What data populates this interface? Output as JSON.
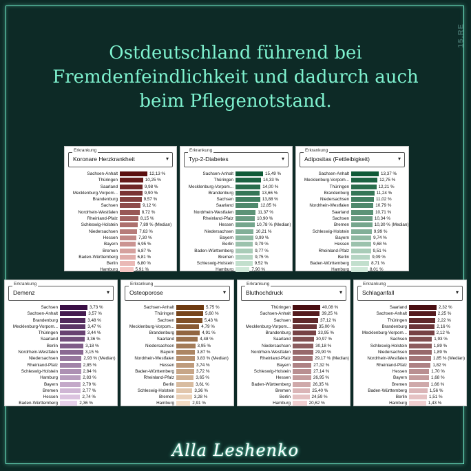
{
  "title": "Ostdeutschland führend bei Fremdenfeindlichkeit und dadurch auch beim Pflegenotstand.",
  "watermark": "15.RE",
  "brand": "Alla Leshenko",
  "panels": [
    {
      "label": "Erkrankung",
      "selected": "Koronare Herzkrankheit",
      "colors": [
        "#5b0f0f",
        "#f4c5c2"
      ],
      "rows": [
        [
          "Sachsen-Anhalt",
          12.13,
          "12,13 %"
        ],
        [
          "Thüringen",
          10.25,
          "10,25 %"
        ],
        [
          "Saarland",
          9.98,
          "9,98 %"
        ],
        [
          "Mecklenburg-Vorpom...",
          9.9,
          "9,90 %"
        ],
        [
          "Brandenburg",
          9.57,
          "9,57 %"
        ],
        [
          "Sachsen",
          9.12,
          "9,12 %"
        ],
        [
          "Nordrhein-Westfalen",
          8.72,
          "8,72 %"
        ],
        [
          "Rheinland-Pfalz",
          8.15,
          "8,15 %"
        ],
        [
          "Schleswig-Holstein",
          7.89,
          "7,89 % (Median)"
        ],
        [
          "Niedersachsen",
          7.63,
          "7,63 %"
        ],
        [
          "Hessen",
          7.3,
          "7,30 %"
        ],
        [
          "Bayern",
          6.95,
          "6,95 %"
        ],
        [
          "Bremen",
          6.87,
          "6,87 %"
        ],
        [
          "Baden-Württemberg",
          6.81,
          "6,81 %"
        ],
        [
          "Berlin",
          6.8,
          "6,80 %"
        ],
        [
          "Hamburg",
          5.91,
          "5,91 %"
        ]
      ]
    },
    {
      "label": "Erkrankung",
      "selected": "Typ-2-Diabetes",
      "colors": [
        "#0f5a37",
        "#cfe8d8"
      ],
      "rows": [
        [
          "Sachsen-Anhalt",
          15.49,
          "15,49 %"
        ],
        [
          "Thüringen",
          14.33,
          "14,33 %"
        ],
        [
          "Mecklenburg-Vorpom...",
          14.0,
          "14,00 %"
        ],
        [
          "Brandenburg",
          13.66,
          "13,66 %"
        ],
        [
          "Sachsen",
          13.88,
          "13,88 %"
        ],
        [
          "Saarland",
          12.85,
          "12,85 %"
        ],
        [
          "Nordrhein-Westfalen",
          11.37,
          "11,37 %"
        ],
        [
          "Rheinland-Pfalz",
          10.9,
          "10,90 %"
        ],
        [
          "Hessen",
          10.78,
          "10,78 % (Median)"
        ],
        [
          "Niedersachsen",
          10.21,
          "10,21 %"
        ],
        [
          "Bayern",
          9.99,
          "9,99 %"
        ],
        [
          "Berlin",
          9.79,
          "9,79 %"
        ],
        [
          "Baden-Württemberg",
          9.77,
          "9,77 %"
        ],
        [
          "Bremen",
          9.75,
          "9,75 %"
        ],
        [
          "Schleswig-Holstein",
          9.52,
          "9,52 %"
        ],
        [
          "Hamburg",
          7.9,
          "7,90 %"
        ]
      ]
    },
    {
      "label": "Erkrankung",
      "selected": "Adipositas (Fettleibigkeit)",
      "colors": [
        "#0f5a37",
        "#cfe8d8"
      ],
      "rows": [
        [
          "Sachsen-Anhalt",
          13.37,
          "13,37 %"
        ],
        [
          "Mecklenburg-Vorpom...",
          12.75,
          "12,75 %"
        ],
        [
          "Thüringen",
          12.21,
          "12,21 %"
        ],
        [
          "Brandenburg",
          11.24,
          "11,24 %"
        ],
        [
          "Niedersachsen",
          11.02,
          "11,02 %"
        ],
        [
          "Nordrhein-Westfalen",
          10.79,
          "10,79 %"
        ],
        [
          "Saarland",
          10.71,
          "10,71 %"
        ],
        [
          "Sachsen",
          10.34,
          "10,34 %"
        ],
        [
          "Bremen",
          10.3,
          "10,30 % (Median)"
        ],
        [
          "Schleswig-Holstein",
          9.99,
          "9,99 %"
        ],
        [
          "Bayern",
          9.74,
          "9,74 %"
        ],
        [
          "Hessen",
          9.68,
          "9,68 %"
        ],
        [
          "Rheinland-Pfalz",
          9.51,
          "9,51 %"
        ],
        [
          "Berlin",
          9.09,
          "9,09 %"
        ],
        [
          "Baden-Württemberg",
          8.71,
          "8,71 %"
        ],
        [
          "Hamburg",
          8.01,
          "8,01 %"
        ]
      ]
    },
    {
      "label": "Erkrankung",
      "selected": "Demenz",
      "colors": [
        "#3a0f45",
        "#e6d0ea"
      ],
      "rows": [
        [
          "Sachsen",
          3.73,
          "3,73 %"
        ],
        [
          "Sachsen-Anhalt",
          3.57,
          "3,57 %"
        ],
        [
          "Brandenburg",
          3.48,
          "3,48 %"
        ],
        [
          "Mecklenburg-Vorpom...",
          3.47,
          "3,47 %"
        ],
        [
          "Thüringen",
          3.44,
          "3,44 %"
        ],
        [
          "Saarland",
          3.36,
          "3,36 %"
        ],
        [
          "Berlin",
          3.18,
          "3,18 %"
        ],
        [
          "Nordrhein-Westfalen",
          3.15,
          "3,15 %"
        ],
        [
          "Niedersachsen",
          2.93,
          "2,93 % (Median)"
        ],
        [
          "Rheinland-Pfalz",
          2.85,
          "2,85 %"
        ],
        [
          "Schleswig-Holstein",
          2.84,
          "2,84 %"
        ],
        [
          "Hamburg",
          2.83,
          "2,83 %"
        ],
        [
          "Bayern",
          2.79,
          "2,79 %"
        ],
        [
          "Bremen",
          2.77,
          "2,77 %"
        ],
        [
          "Hessen",
          2.74,
          "2,74 %"
        ],
        [
          "Baden-Württemberg",
          2.36,
          "2,36 %"
        ]
      ]
    },
    {
      "label": "Erkrankung",
      "selected": "Osteoporose",
      "colors": [
        "#6e3a10",
        "#f3dcc4"
      ],
      "rows": [
        [
          "Sachsen-Anhalt",
          5.75,
          "5,75 %"
        ],
        [
          "Thüringen",
          5.6,
          "5,60 %"
        ],
        [
          "Sachsen",
          5.43,
          "5,43 %"
        ],
        [
          "Mecklenburg-Vorpom...",
          4.79,
          "4,79 %"
        ],
        [
          "Brandenburg",
          4.91,
          "4,91 %"
        ],
        [
          "Saarland",
          4.48,
          "4,48 %"
        ],
        [
          "Niedersachsen",
          3.95,
          "3,95 %"
        ],
        [
          "Bayern",
          3.87,
          "3,87 %"
        ],
        [
          "Nordrhein-Westfalen",
          3.83,
          "3,83 % (Median)"
        ],
        [
          "Hessen",
          3.74,
          "3,74 %"
        ],
        [
          "Baden-Württemberg",
          3.72,
          "3,72 %"
        ],
        [
          "Rheinland-Pfalz",
          3.65,
          "3,65 %"
        ],
        [
          "Berlin",
          3.61,
          "3,61 %"
        ],
        [
          "Schleswig-Holstein",
          3.36,
          "3,36 %"
        ],
        [
          "Bremen",
          3.28,
          "3,28 %"
        ],
        [
          "Hamburg",
          2.91,
          "2,91 %"
        ]
      ]
    },
    {
      "label": "Erkrankung",
      "selected": "Bluthochdruck",
      "colors": [
        "#4a0f12",
        "#f0cfd0"
      ],
      "rows": [
        [
          "Thüringen",
          40.08,
          "40,08 %"
        ],
        [
          "Sachsen-Anhalt",
          39.25,
          "39,25 %"
        ],
        [
          "Sachsen",
          37.12,
          "37,12 %"
        ],
        [
          "Mecklenburg-Vorpom...",
          35.0,
          "35,00 %"
        ],
        [
          "Brandenburg",
          33.95,
          "33,95 %"
        ],
        [
          "Saarland",
          30.97,
          "30,97 %"
        ],
        [
          "Niedersachsen",
          30.18,
          "30,18 %"
        ],
        [
          "Nordrhein-Westfalen",
          29.9,
          "29,90 %"
        ],
        [
          "Rheinland-Pfalz",
          29.17,
          "29,17 % (Median)"
        ],
        [
          "Bayern",
          27.32,
          "27,32 %"
        ],
        [
          "Schleswig-Holstein",
          27.14,
          "27,14 %"
        ],
        [
          "Hessen",
          26.95,
          "26,95 %"
        ],
        [
          "Baden-Württemberg",
          26.35,
          "26,35 %"
        ],
        [
          "Bremen",
          25.4,
          "25,40 %"
        ],
        [
          "Berlin",
          24.59,
          "24,59 %"
        ],
        [
          "Hamburg",
          20.62,
          "20,62 %"
        ]
      ]
    },
    {
      "label": "Erkrankung",
      "selected": "Schlaganfall",
      "colors": [
        "#4a0f12",
        "#f0cfd0"
      ],
      "rows": [
        [
          "Saarland",
          2.32,
          "2,32 %"
        ],
        [
          "Sachsen-Anhalt",
          2.25,
          "2,25 %"
        ],
        [
          "Thüringen",
          2.22,
          "2,22 %"
        ],
        [
          "Brandenburg",
          2.16,
          "2,16 %"
        ],
        [
          "Mecklenburg-Vorpom...",
          2.12,
          "2,12 %"
        ],
        [
          "Sachsen",
          1.93,
          "1,93 %"
        ],
        [
          "Schleswig-Holstein",
          1.89,
          "1,89 %"
        ],
        [
          "Niedersachsen",
          1.89,
          "1,89 %"
        ],
        [
          "Nordrhein-Westfalen",
          1.85,
          "1,85 % (Median)"
        ],
        [
          "Rheinland-Pfalz",
          1.82,
          "1,82 %"
        ],
        [
          "Hessen",
          1.7,
          "1,70 %"
        ],
        [
          "Bayern",
          1.68,
          "1,68 %"
        ],
        [
          "Bremen",
          1.66,
          "1,66 %"
        ],
        [
          "Baden-Württemberg",
          1.56,
          "1,56 %"
        ],
        [
          "Berlin",
          1.51,
          "1,51 %"
        ],
        [
          "Hamburg",
          1.43,
          "1,43 %"
        ]
      ]
    }
  ]
}
